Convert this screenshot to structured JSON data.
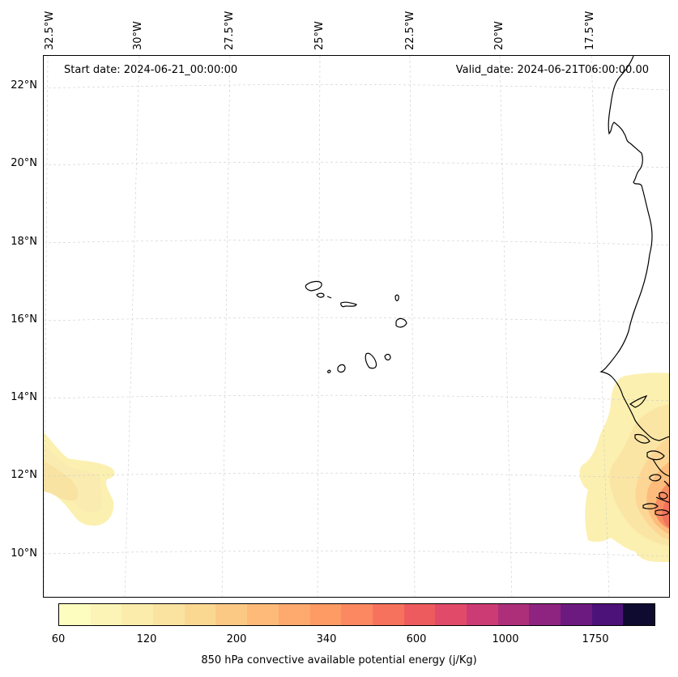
{
  "header": {
    "start_date": "Start date: 2024-06-21_00:00:00",
    "valid_date": "Valid_date: 2024-06-21T06:00:00.00"
  },
  "lon_labels": [
    "32.5°W",
    "30°W",
    "27.5°W",
    "25°W",
    "22.5°W",
    "20°W",
    "17.5°W"
  ],
  "lat_labels": [
    "22°N",
    "20°N",
    "18°N",
    "16°N",
    "14°N",
    "12°N",
    "10°N"
  ],
  "colorbar": {
    "label": "850 hPa convective available potential energy (j/Kg)",
    "tick_labels": [
      "60",
      "120",
      "200",
      "340",
      "600",
      "1000",
      "1750"
    ],
    "colors": [
      "#fcfdbf",
      "#fcf4b6",
      "#fbecab",
      "#fae3a0",
      "#fbd892",
      "#fcc985",
      "#fdba78",
      "#fea96d",
      "#fe9a63",
      "#fb8861",
      "#f7725c",
      "#ee5b5e",
      "#e14a68",
      "#cc3b73",
      "#ad2f7a",
      "#8e2380",
      "#6d1a80",
      "#4d117a",
      "#0f0b30"
    ]
  },
  "map": {
    "region": "Cape Verde / West Africa",
    "grid": true,
    "coastline_color": "#000000",
    "field": "850 hPa CAPE"
  }
}
